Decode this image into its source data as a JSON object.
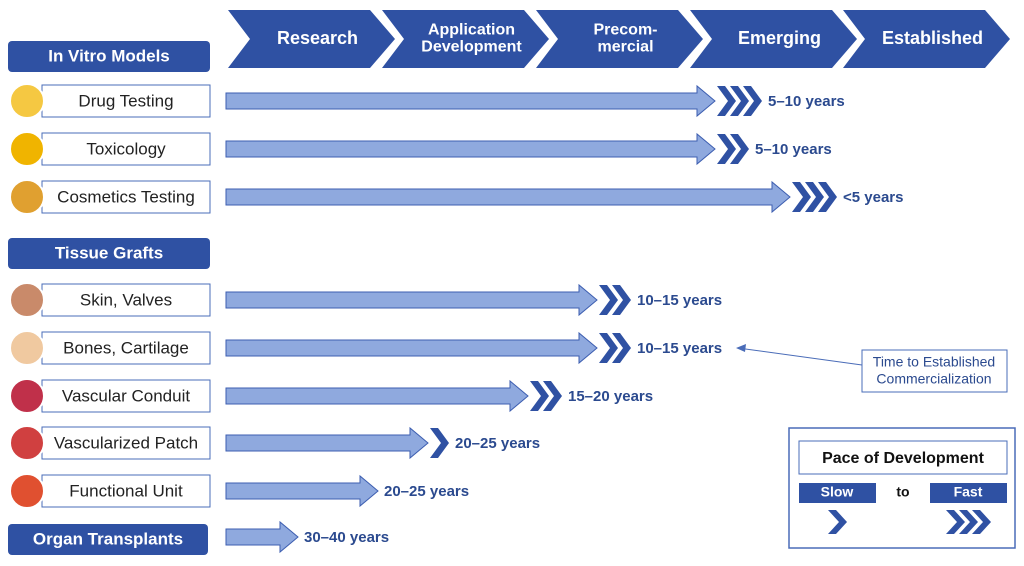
{
  "stages": [
    [
      "Research"
    ],
    [
      "Application",
      "Development"
    ],
    [
      "Precom-",
      "mercial"
    ],
    [
      "Emerging"
    ],
    [
      "Established"
    ]
  ],
  "groups": [
    {
      "title": "In Vitro Models",
      "items": [
        {
          "label": "Drug Testing",
          "time": "5–10 years"
        },
        {
          "label": "Toxicology",
          "time": "5–10 years"
        },
        {
          "label": "Cosmetics Testing",
          "time": "<5 years"
        }
      ]
    },
    {
      "title": "Tissue Grafts",
      "items": [
        {
          "label": "Skin, Valves",
          "time": "10–15 years"
        },
        {
          "label": "Bones, Cartilage",
          "time": "10–15 years"
        },
        {
          "label": "Vascular Conduit",
          "time": "15–20 years"
        },
        {
          "label": "Vascularized Patch",
          "time": "20–25 years"
        },
        {
          "label": "Functional Unit",
          "time": "20–25 years"
        }
      ]
    },
    {
      "title": "Organ Transplants",
      "time": "30–40 years"
    }
  ],
  "annotation": [
    "Time to Established",
    "Commercialization"
  ],
  "legend": {
    "title": "Pace of Development",
    "slow": "Slow",
    "to": "to",
    "fast": "Fast"
  }
}
